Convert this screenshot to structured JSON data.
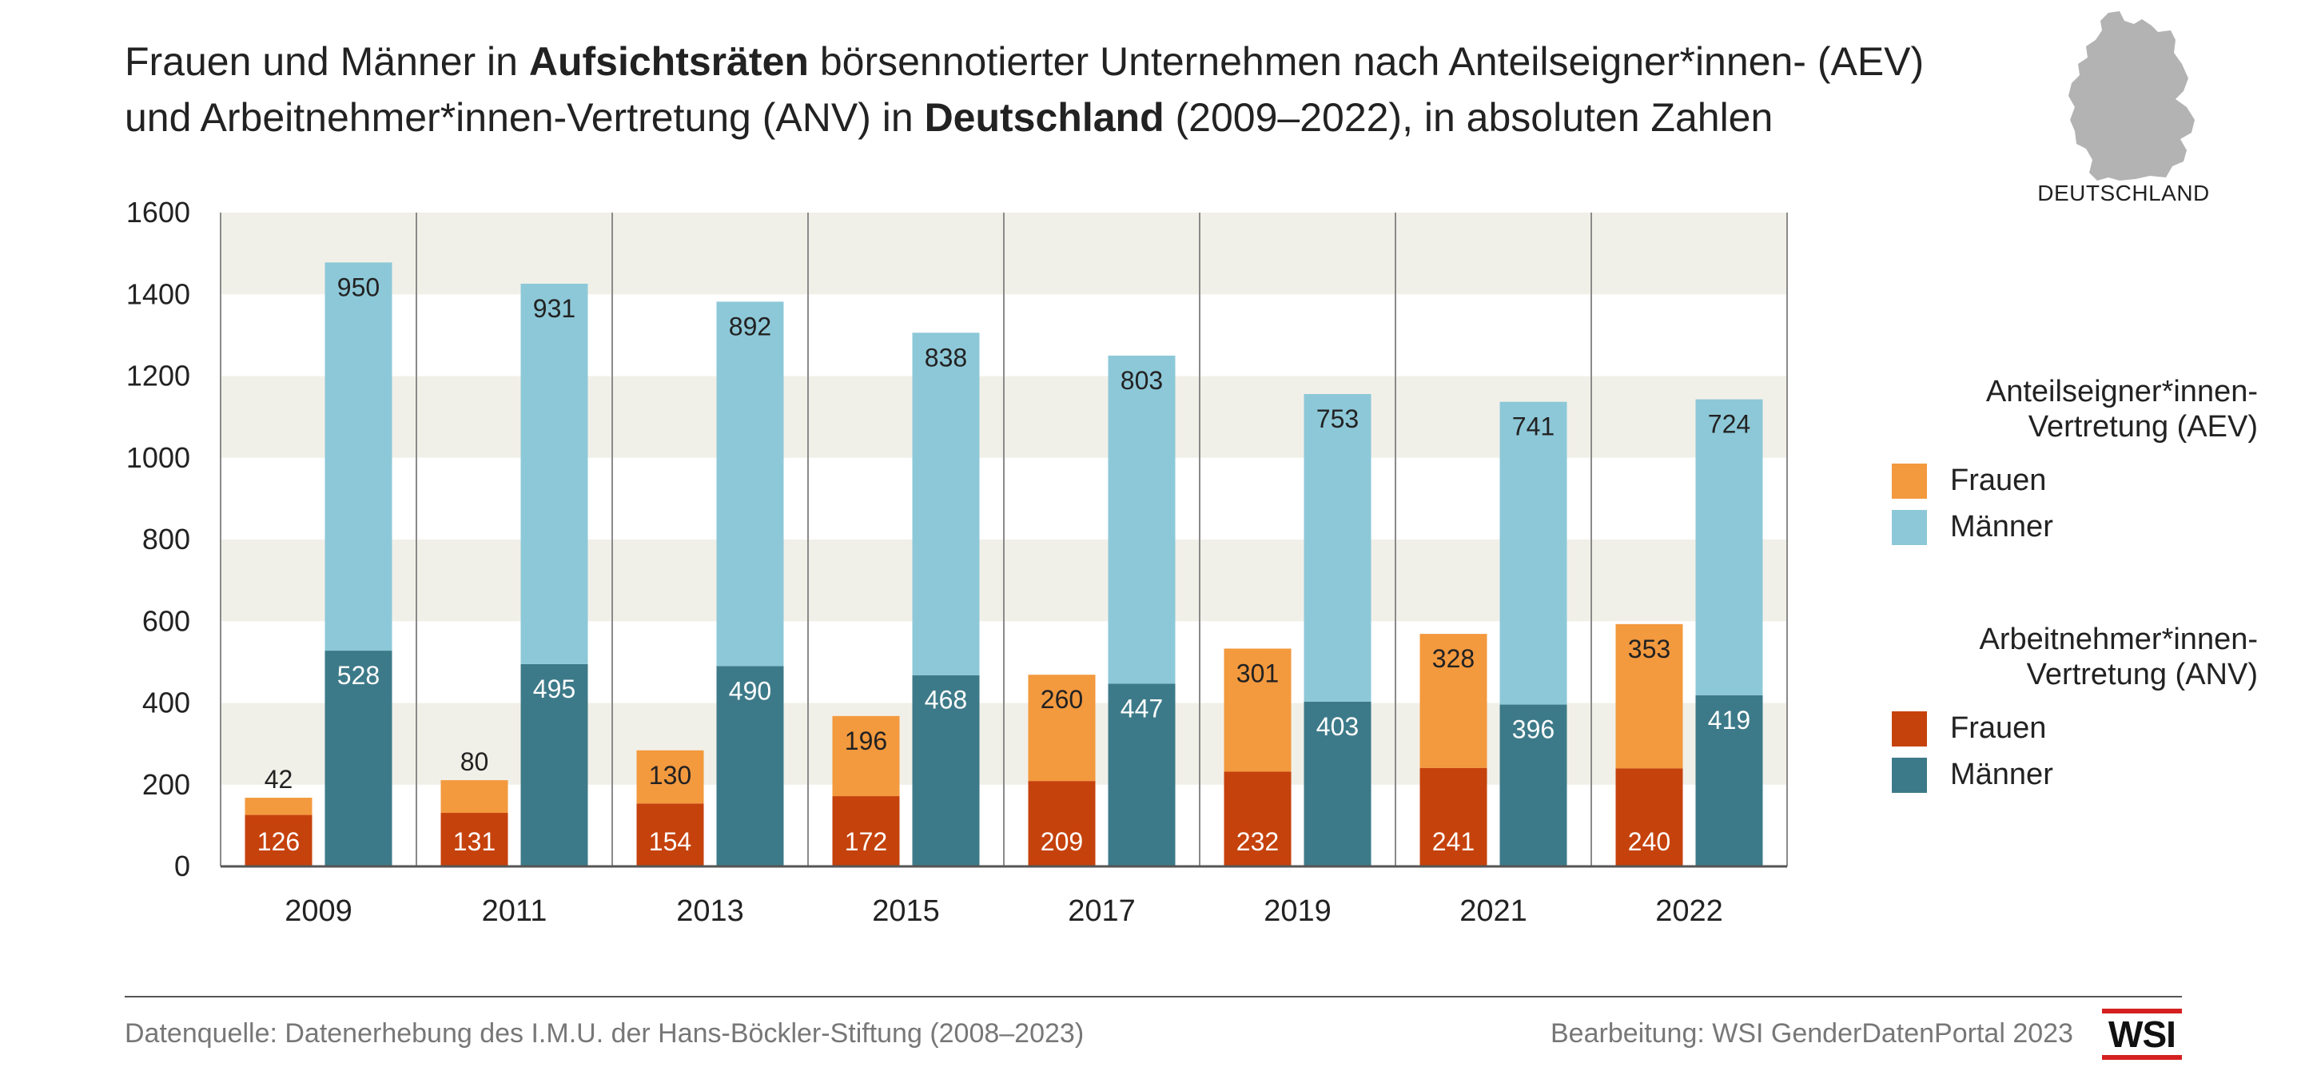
{
  "title": {
    "line1_a": "Frauen und Männer in ",
    "line1_b": "Aufsichtsräten",
    "line1_c": " börsennotierter Unternehmen nach Anteilseigner*innen- (AEV)",
    "line2_a": "und Arbeitnehmer*innen-Vertretung (ANV) in ",
    "line2_b": "Deutschland",
    "line2_c": " (2009–2022), in absoluten Zahlen"
  },
  "map": {
    "label": "DEUTSCHLAND",
    "icon": "germany-map-icon",
    "color": "#b3b3b3"
  },
  "legend": {
    "aev_heading_1": "Anteilseigner*innen-",
    "aev_heading_2": "Vertretung (AEV)",
    "aev_frauen": "Frauen",
    "aev_maenner": "Männer",
    "anv_heading_1": "Arbeitnehmer*innen-",
    "anv_heading_2": "Vertretung (ANV)",
    "anv_frauen": "Frauen",
    "anv_maenner": "Männer"
  },
  "colors": {
    "aev_frauen": "#f3993e",
    "aev_maenner": "#8dc8d8",
    "anv_frauen": "#c6420c",
    "anv_maenner": "#3d7a89",
    "band": "#f1f0e8"
  },
  "chart_data": {
    "type": "bar",
    "stacked": true,
    "categories": [
      "2009",
      "2011",
      "2013",
      "2015",
      "2017",
      "2019",
      "2021",
      "2022"
    ],
    "groups": [
      {
        "name": "Frauen",
        "stack": [
          {
            "name": "ANV Frauen",
            "values": [
              126,
              131,
              154,
              172,
              209,
              232,
              241,
              240
            ]
          },
          {
            "name": "AEV Frauen",
            "values": [
              42,
              80,
              130,
              196,
              260,
              301,
              328,
              353
            ]
          }
        ]
      },
      {
        "name": "Männer",
        "stack": [
          {
            "name": "ANV Männer",
            "values": [
              528,
              495,
              490,
              468,
              447,
              403,
              396,
              419
            ]
          },
          {
            "name": "AEV Männer",
            "values": [
              950,
              931,
              892,
              838,
              803,
              753,
              741,
              724
            ]
          }
        ]
      }
    ],
    "ylim": [
      0,
      1600
    ],
    "yticks": [
      0,
      200,
      400,
      600,
      800,
      1000,
      1200,
      1400,
      1600
    ],
    "xlabel": "",
    "ylabel": "",
    "grid": "alternating horizontal bands",
    "legend_position": "right"
  },
  "footer": {
    "source": "Datenquelle: Datenerhebung des I.M.U. der Hans-Böckler-Stiftung (2008–2023)",
    "credit": "Bearbeitung: WSI GenderDatenPortal 2023",
    "logo_text": "WSI"
  }
}
